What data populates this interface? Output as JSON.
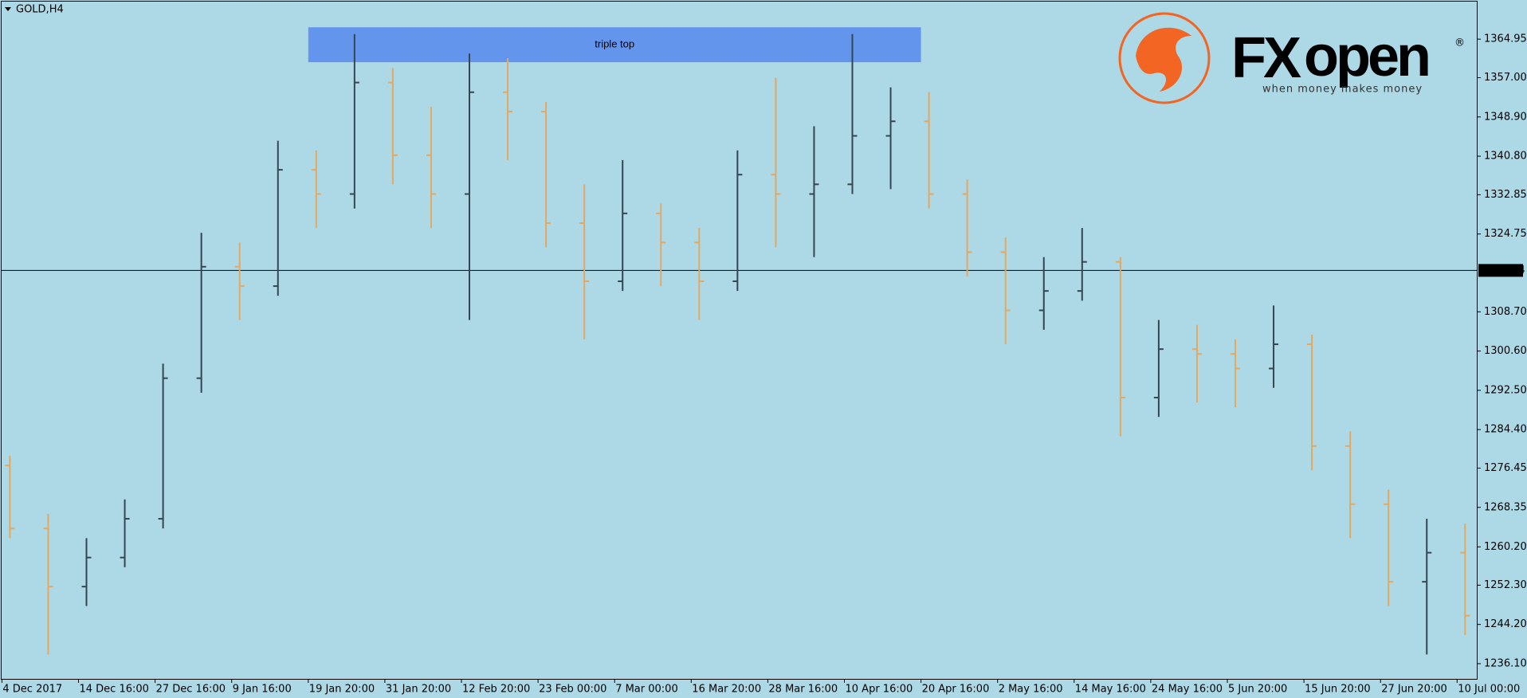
{
  "chart_data": {
    "type": "ohlc",
    "title": "GOLD,H4",
    "categories": [
      "4 Dec 2017",
      null,
      "14 Dec 16:00",
      null,
      "27 Dec 16:00",
      null,
      "9 Jan 16:00",
      null,
      "19 Jan 20:00",
      null,
      "31 Jan 20:00",
      null,
      "12 Feb 20:00",
      null,
      "23 Feb 00:00",
      null,
      "7 Mar 00:00",
      null,
      "16 Mar 20:00",
      null,
      "28 Mar 16:00",
      null,
      "10 Apr 16:00",
      null,
      "20 Apr 16:00",
      null,
      "2 May 16:00",
      null,
      "14 May 16:00",
      null,
      "24 May 16:00",
      null,
      "5 Jun 20:00",
      null,
      "15 Jun 20:00",
      null,
      "27 Jun 20:00",
      null,
      "10 Jul 00:00"
    ],
    "open": [
      1277,
      1264,
      1252,
      1258,
      1266,
      1295,
      1318,
      1314,
      1338,
      1333,
      1356,
      1341,
      1333,
      1354,
      1350,
      1327,
      1315,
      1329,
      1323,
      1315,
      1337,
      1333,
      1335,
      1345,
      1348,
      1333,
      1321,
      1309,
      1313,
      1319,
      1291,
      1301,
      1300,
      1297,
      1302,
      1281,
      1269,
      1253,
      1259
    ],
    "high": [
      1279,
      1267,
      1262,
      1270,
      1298,
      1325,
      1323,
      1344,
      1342,
      1366,
      1359,
      1351,
      1362,
      1361,
      1352,
      1335,
      1340,
      1331,
      1326,
      1342,
      1357,
      1347,
      1366,
      1355,
      1354,
      1336,
      1324,
      1320,
      1326,
      1320,
      1307,
      1306,
      1303,
      1310,
      1304,
      1284,
      1272,
      1266,
      1265
    ],
    "low": [
      1262,
      1238,
      1248,
      1256,
      1264,
      1292,
      1307,
      1312,
      1326,
      1330,
      1335,
      1326,
      1307,
      1340,
      1322,
      1303,
      1313,
      1314,
      1307,
      1313,
      1322,
      1320,
      1333,
      1334,
      1330,
      1316,
      1302,
      1305,
      1311,
      1283,
      1287,
      1290,
      1289,
      1293,
      1276,
      1262,
      1248,
      1238,
      1242
    ],
    "close": [
      1264,
      1252,
      1258,
      1266,
      1295,
      1318,
      1314,
      1338,
      1333,
      1356,
      1341,
      1333,
      1354,
      1350,
      1327,
      1315,
      1329,
      1323,
      1315,
      1337,
      1333,
      1335,
      1345,
      1348,
      1333,
      1321,
      1309,
      1313,
      1319,
      1291,
      1301,
      1300,
      1297,
      1302,
      1281,
      1269,
      1253,
      1259,
      1246
    ],
    "up_color": "#34464f",
    "down_color": "#e3a862",
    "ylim": [
      1232.8,
      1372.7
    ],
    "yticks": [
      1364.95,
      {
        "value": 1357.0,
        "label": "1357.00"
      },
      {
        "value": 1348.9,
        "label": "1348.90"
      },
      {
        "value": 1340.8,
        "label": "1340.80"
      },
      1332.85,
      1324.75,
      {
        "value": 1308.7,
        "label": "1308.70"
      },
      {
        "value": 1300.6,
        "label": "1300.60"
      },
      {
        "value": 1292.5,
        "label": "1292.50"
      },
      {
        "value": 1284.4,
        "label": "1284.40"
      },
      1276.45,
      1268.35,
      {
        "value": 1260.2,
        "label": "1260.20"
      },
      {
        "value": 1252.3,
        "label": "1252.30"
      },
      {
        "value": 1244.2,
        "label": "1244.20"
      },
      {
        "value": 1236.1,
        "label": "1236.10"
      }
    ],
    "current_price": 1317.24,
    "zone": {
      "label": "triple top",
      "x_range": [
        8,
        24
      ],
      "y_range": [
        1360.2,
        1367.4
      ],
      "color": "#6495ed"
    },
    "logo": {
      "brand_a": "FX",
      "brand_b": "open",
      "mark": "®",
      "tagline": "when money makes money",
      "color": "#f26522"
    }
  }
}
